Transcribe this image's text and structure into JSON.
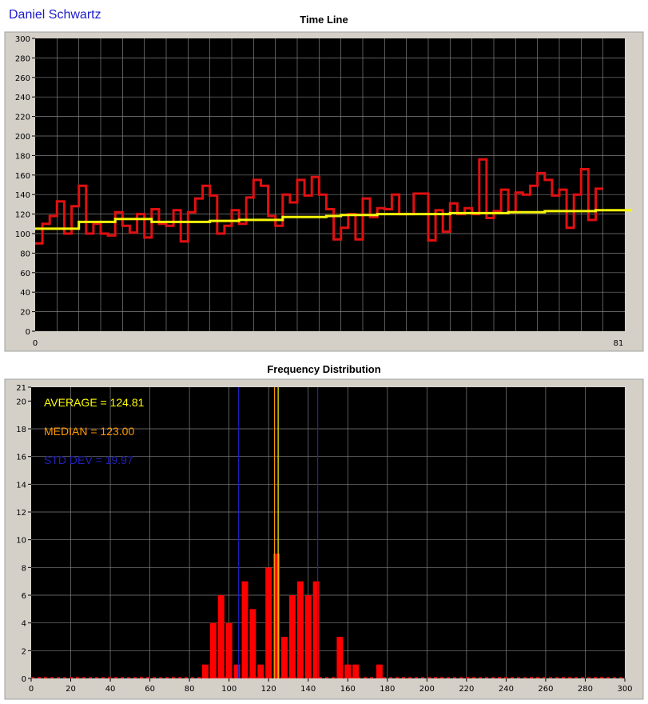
{
  "header": {
    "user_name": "Daniel Schwartz"
  },
  "chart_data": [
    {
      "type": "line",
      "title": "Time Line",
      "xlim": [
        0,
        81
      ],
      "ylim": [
        0,
        300
      ],
      "x_tick_labels": [
        "0",
        "81"
      ],
      "y_ticks": [
        0,
        20,
        40,
        60,
        80,
        100,
        120,
        140,
        160,
        180,
        200,
        220,
        240,
        260,
        280,
        300
      ],
      "grid": true,
      "step": true,
      "series": [
        {
          "color": "#e01010",
          "values": [
            90,
            110,
            118,
            133,
            100,
            128,
            149,
            100,
            110,
            100,
            98,
            122,
            108,
            101,
            120,
            96,
            125,
            110,
            108,
            124,
            92,
            122,
            136,
            149,
            139,
            100,
            108,
            124,
            110,
            137,
            155,
            149,
            118,
            108,
            140,
            132,
            155,
            139,
            158,
            140,
            125,
            94,
            106,
            120,
            94,
            136,
            117,
            126,
            125,
            140,
            120,
            120,
            141,
            141,
            93,
            124,
            102,
            131,
            120,
            126,
            120,
            176,
            116,
            123,
            145,
            122,
            142,
            140,
            149,
            162,
            155,
            139,
            145,
            106,
            140,
            166,
            114,
            146
          ]
        },
        {
          "color": "#f5f50a",
          "values": [
            105,
            105,
            105,
            105,
            105,
            105,
            112,
            112,
            112,
            112,
            112,
            115,
            115,
            115,
            115,
            115,
            112,
            112,
            112,
            112,
            112,
            112,
            112,
            112,
            113,
            113,
            113,
            113,
            114,
            114,
            114,
            114,
            114,
            114,
            117,
            117,
            117,
            117,
            117,
            117,
            118,
            118,
            119,
            119,
            119,
            119,
            119,
            120,
            120,
            120,
            120,
            120,
            120,
            120,
            120,
            120,
            120,
            121,
            121,
            121,
            121,
            121,
            121,
            121,
            121,
            122,
            122,
            122,
            122,
            122,
            123,
            123,
            123,
            123,
            123,
            123,
            123,
            124,
            124,
            124,
            124,
            124
          ]
        }
      ]
    },
    {
      "type": "bar",
      "title": "Frequency Distribution",
      "xlim": [
        0,
        300
      ],
      "ylim": [
        0,
        21
      ],
      "x_ticks": [
        0,
        20,
        40,
        60,
        80,
        100,
        120,
        140,
        160,
        180,
        200,
        220,
        240,
        260,
        280,
        300
      ],
      "y_ticks": [
        0,
        2,
        4,
        6,
        8,
        10,
        12,
        14,
        16,
        18,
        20,
        21
      ],
      "grid": true,
      "bar_color": "#ff0000",
      "bars": [
        {
          "x": 88,
          "value": 1
        },
        {
          "x": 92,
          "value": 4
        },
        {
          "x": 96,
          "value": 6
        },
        {
          "x": 100,
          "value": 4
        },
        {
          "x": 104,
          "value": 1
        },
        {
          "x": 108,
          "value": 7
        },
        {
          "x": 112,
          "value": 5
        },
        {
          "x": 116,
          "value": 1
        },
        {
          "x": 120,
          "value": 8
        },
        {
          "x": 124,
          "value": 9
        },
        {
          "x": 128,
          "value": 3
        },
        {
          "x": 132,
          "value": 6
        },
        {
          "x": 136,
          "value": 7
        },
        {
          "x": 140,
          "value": 6
        },
        {
          "x": 144,
          "value": 7
        },
        {
          "x": 156,
          "value": 3
        },
        {
          "x": 160,
          "value": 1
        },
        {
          "x": 164,
          "value": 1
        },
        {
          "x": 176,
          "value": 1
        }
      ],
      "reference_lines": [
        {
          "name": "average",
          "value": 124.81,
          "color": "#ffff00"
        },
        {
          "name": "median",
          "value": 123.0,
          "color": "#ff9900"
        },
        {
          "name": "std-dev-low",
          "value": 104.84,
          "color": "#2020c0"
        },
        {
          "name": "std-dev-high",
          "value": 144.78,
          "color": "#2020c0"
        }
      ],
      "annotations": [
        {
          "text": "AVERAGE = 124.81",
          "color": "#ffff00"
        },
        {
          "text": "MEDIAN = 123.00",
          "color": "#ff9900"
        },
        {
          "text": "STD DEV = 19.97",
          "color": "#2020c0"
        }
      ]
    }
  ]
}
